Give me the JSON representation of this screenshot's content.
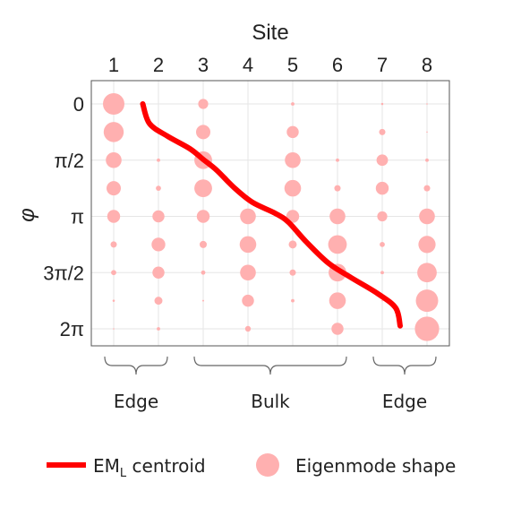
{
  "chart_data": {
    "type": "scatter",
    "xlabel": "Site",
    "ylabel": "φ",
    "x_ticks": [
      "1",
      "2",
      "3",
      "4",
      "5",
      "6",
      "7",
      "8"
    ],
    "y_ticks": [
      "0",
      "π/2",
      "π",
      "3π/2",
      "2π"
    ],
    "y_tick_values": [
      0,
      1.5708,
      3.1416,
      4.7124,
      6.2832
    ],
    "ylim": [
      0,
      6.2832
    ],
    "xlim": [
      0.5,
      8.5
    ],
    "y_direction": "down",
    "grid": true,
    "phi_rows": [
      0,
      0.7854,
      1.5708,
      2.3562,
      3.1416,
      3.927,
      4.7124,
      5.4978,
      6.2832
    ],
    "eigenmode_shape": [
      [
        0.75,
        0.0,
        0.35,
        0.0,
        0.12,
        0.0,
        0.08,
        0.05
      ],
      [
        0.7,
        0.0,
        0.5,
        0.0,
        0.42,
        0.0,
        0.22,
        0.05
      ],
      [
        0.55,
        0.12,
        0.62,
        0.0,
        0.55,
        0.12,
        0.4,
        0.12
      ],
      [
        0.5,
        0.18,
        0.62,
        0.0,
        0.58,
        0.22,
        0.45,
        0.22
      ],
      [
        0.45,
        0.42,
        0.45,
        0.55,
        0.45,
        0.55,
        0.35,
        0.55
      ],
      [
        0.22,
        0.48,
        0.25,
        0.58,
        0.28,
        0.65,
        0.18,
        0.6
      ],
      [
        0.18,
        0.42,
        0.15,
        0.55,
        0.22,
        0.62,
        0.12,
        0.68
      ],
      [
        0.08,
        0.28,
        0.06,
        0.42,
        0.12,
        0.58,
        0.05,
        0.78
      ],
      [
        0.05,
        0.12,
        0.0,
        0.2,
        0.0,
        0.42,
        0.0,
        0.85
      ]
    ],
    "centroid_curve": {
      "site": [
        1.65,
        1.8,
        2.2,
        2.7,
        3.0,
        3.3,
        3.7,
        4.1,
        4.6,
        4.9,
        5.3,
        5.8,
        6.3,
        6.9,
        7.3,
        7.4
      ],
      "phi": [
        0.0,
        0.55,
        0.9,
        1.25,
        1.55,
        1.85,
        2.35,
        2.75,
        3.05,
        3.3,
        3.85,
        4.45,
        4.85,
        5.3,
        5.7,
        6.2
      ]
    },
    "groups": [
      {
        "label": "Edge",
        "from": 1,
        "to": 2
      },
      {
        "label": "Bulk",
        "from": 3,
        "to": 6
      },
      {
        "label": "Edge",
        "from": 7,
        "to": 8
      }
    ],
    "legend": {
      "line_label_main": "EM",
      "line_label_sub": "L",
      "line_label_rest": " centroid",
      "marker_label": "Eigenmode  shape",
      "placement": "bottom"
    },
    "colors": {
      "centroid": "#ff0000",
      "eigenmode": "#ffb0b0",
      "axes": "#555555",
      "grid": "#e6e6e6"
    }
  }
}
